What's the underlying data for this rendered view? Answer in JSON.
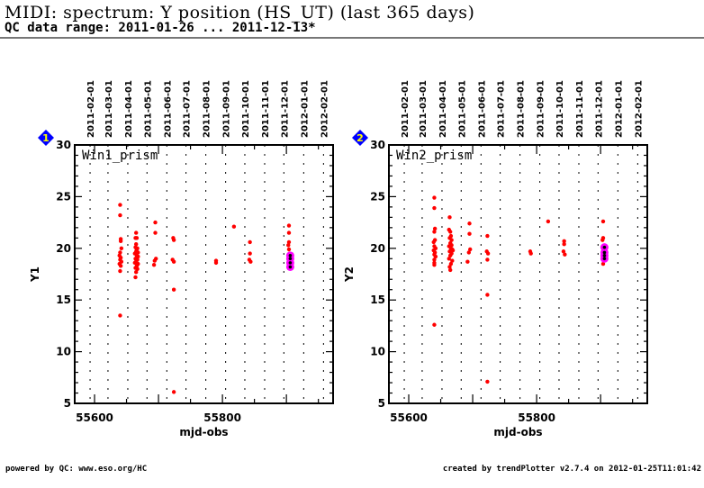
{
  "header": {
    "title": "MIDI: spectrum: Y position (HS_UT) (last 365 days)",
    "subtitle": "QC data range: 2011-01-26 ... 2011-12-13*"
  },
  "footer": {
    "left": "powered by QC: www.eso.org/HC",
    "right": "created by trendPlotter v2.7.4 on 2012-01-25T11:01:42"
  },
  "colors": {
    "points": "#ff0000",
    "highlight": "#ff00ff",
    "highlight_core": "#000000",
    "badge": "#0000ff",
    "badge_text": "#ffff00"
  },
  "chart_data": [
    {
      "type": "scatter",
      "badge": "1",
      "panel_label": "Win1_prism",
      "xlabel": "mjd-obs",
      "ylabel": "Y1",
      "xlim": [
        55569,
        55973
      ],
      "ylim": [
        5,
        30
      ],
      "xticks": [
        "55600",
        "55800"
      ],
      "yticks": [
        "5",
        "10",
        "15",
        "20",
        "25",
        "30"
      ],
      "top_date_ticks": [
        {
          "label": "2011-02-01",
          "mjd": 55593
        },
        {
          "label": "2011-03-01",
          "mjd": 55621
        },
        {
          "label": "2011-04-01",
          "mjd": 55652
        },
        {
          "label": "2011-05-01",
          "mjd": 55682
        },
        {
          "label": "2011-06-01",
          "mjd": 55713
        },
        {
          "label": "2011-07-01",
          "mjd": 55743
        },
        {
          "label": "2011-08-01",
          "mjd": 55774
        },
        {
          "label": "2011-09-01",
          "mjd": 55805
        },
        {
          "label": "2011-10-01",
          "mjd": 55835
        },
        {
          "label": "2011-11-01",
          "mjd": 55866
        },
        {
          "label": "2011-12-01",
          "mjd": 55896
        },
        {
          "label": "2012-01-01",
          "mjd": 55927
        },
        {
          "label": "2012-02-01",
          "mjd": 55958
        }
      ],
      "points": [
        [
          55640,
          24.2
        ],
        [
          55640,
          23.2
        ],
        [
          55641,
          20.9
        ],
        [
          55641,
          20.7
        ],
        [
          55642,
          20.0
        ],
        [
          55640,
          19.6
        ],
        [
          55639,
          19.3
        ],
        [
          55641,
          19.1
        ],
        [
          55640,
          18.9
        ],
        [
          55642,
          18.7
        ],
        [
          55639,
          18.5
        ],
        [
          55641,
          18.3
        ],
        [
          55640,
          17.8
        ],
        [
          55640,
          13.5
        ],
        [
          55665,
          21.5
        ],
        [
          55664,
          21.0
        ],
        [
          55666,
          21.0
        ],
        [
          55665,
          20.4
        ],
        [
          55664,
          20.1
        ],
        [
          55667,
          20.0
        ],
        [
          55665,
          19.7
        ],
        [
          55663,
          19.5
        ],
        [
          55666,
          19.3
        ],
        [
          55668,
          19.2
        ],
        [
          55664,
          19.0
        ],
        [
          55667,
          18.9
        ],
        [
          55665,
          18.7
        ],
        [
          55663,
          18.6
        ],
        [
          55668,
          18.5
        ],
        [
          55666,
          18.3
        ],
        [
          55664,
          18.1
        ],
        [
          55667,
          18.0
        ],
        [
          55665,
          17.7
        ],
        [
          55664,
          17.2
        ],
        [
          55666,
          19.9
        ],
        [
          55668,
          19.6
        ],
        [
          55695,
          22.5
        ],
        [
          55695,
          21.5
        ],
        [
          55696,
          19.0
        ],
        [
          55694,
          18.8
        ],
        [
          55693,
          18.4
        ],
        [
          55723,
          21.0
        ],
        [
          55724,
          20.8
        ],
        [
          55722,
          18.9
        ],
        [
          55724,
          18.7
        ],
        [
          55724,
          16.0
        ],
        [
          55724,
          6.1
        ],
        [
          55790,
          18.8
        ],
        [
          55790,
          18.6
        ],
        [
          55818,
          22.1
        ],
        [
          55843,
          20.6
        ],
        [
          55843,
          19.5
        ],
        [
          55842,
          18.9
        ],
        [
          55844,
          18.7
        ],
        [
          55904,
          22.2
        ],
        [
          55904,
          21.5
        ],
        [
          55904,
          20.6
        ],
        [
          55903,
          20.3
        ],
        [
          55904,
          19.9
        ],
        [
          55905,
          19.5
        ]
      ],
      "highlighted": [
        [
          55906,
          19.3
        ],
        [
          55906,
          18.6
        ],
        [
          55906,
          18.2
        ],
        [
          55906,
          19.0
        ]
      ]
    },
    {
      "type": "scatter",
      "badge": "2",
      "panel_label": "Win2_prism",
      "xlabel": "mjd-obs",
      "ylabel": "Y2",
      "xlim": [
        55569,
        55973
      ],
      "ylim": [
        5,
        30
      ],
      "xticks": [
        "55600",
        "55800"
      ],
      "yticks": [
        "5",
        "10",
        "15",
        "20",
        "25",
        "30"
      ],
      "top_date_ticks": [
        {
          "label": "2011-02-01",
          "mjd": 55593
        },
        {
          "label": "2011-03-01",
          "mjd": 55621
        },
        {
          "label": "2011-04-01",
          "mjd": 55652
        },
        {
          "label": "2011-05-01",
          "mjd": 55682
        },
        {
          "label": "2011-06-01",
          "mjd": 55713
        },
        {
          "label": "2011-07-01",
          "mjd": 55743
        },
        {
          "label": "2011-08-01",
          "mjd": 55774
        },
        {
          "label": "2011-09-01",
          "mjd": 55805
        },
        {
          "label": "2011-10-01",
          "mjd": 55835
        },
        {
          "label": "2011-11-01",
          "mjd": 55866
        },
        {
          "label": "2011-12-01",
          "mjd": 55896
        },
        {
          "label": "2012-01-01",
          "mjd": 55927
        },
        {
          "label": "2012-02-01",
          "mjd": 55958
        }
      ],
      "points": [
        [
          55640,
          24.9
        ],
        [
          55640,
          23.9
        ],
        [
          55641,
          21.9
        ],
        [
          55640,
          21.6
        ],
        [
          55641,
          20.8
        ],
        [
          55639,
          20.6
        ],
        [
          55640,
          20.2
        ],
        [
          55642,
          20.0
        ],
        [
          55639,
          19.8
        ],
        [
          55641,
          19.6
        ],
        [
          55640,
          19.4
        ],
        [
          55642,
          19.2
        ],
        [
          55640,
          18.9
        ],
        [
          55640,
          18.6
        ],
        [
          55640,
          18.4
        ],
        [
          55640,
          12.6
        ],
        [
          55664,
          23.0
        ],
        [
          55663,
          21.8
        ],
        [
          55665,
          21.6
        ],
        [
          55666,
          21.2
        ],
        [
          55664,
          21.0
        ],
        [
          55667,
          20.8
        ],
        [
          55665,
          20.5
        ],
        [
          55663,
          20.2
        ],
        [
          55666,
          20.0
        ],
        [
          55668,
          19.9
        ],
        [
          55664,
          19.7
        ],
        [
          55667,
          19.5
        ],
        [
          55665,
          19.3
        ],
        [
          55663,
          19.0
        ],
        [
          55668,
          18.8
        ],
        [
          55666,
          18.5
        ],
        [
          55664,
          18.2
        ],
        [
          55665,
          17.9
        ],
        [
          55667,
          20.3
        ],
        [
          55669,
          19.8
        ],
        [
          55695,
          22.4
        ],
        [
          55695,
          21.4
        ],
        [
          55696,
          19.9
        ],
        [
          55694,
          19.6
        ],
        [
          55692,
          18.7
        ],
        [
          55723,
          21.2
        ],
        [
          55722,
          19.7
        ],
        [
          55724,
          19.5
        ],
        [
          55723,
          18.9
        ],
        [
          55723,
          15.5
        ],
        [
          55723,
          7.1
        ],
        [
          55790,
          19.7
        ],
        [
          55791,
          19.5
        ],
        [
          55818,
          22.6
        ],
        [
          55843,
          20.7
        ],
        [
          55843,
          20.4
        ],
        [
          55842,
          19.7
        ],
        [
          55844,
          19.4
        ],
        [
          55904,
          22.6
        ],
        [
          55904,
          21.0
        ],
        [
          55903,
          20.8
        ],
        [
          55904,
          18.5
        ]
      ],
      "highlighted": [
        [
          55906,
          20.1
        ],
        [
          55906,
          19.6
        ],
        [
          55906,
          19.3
        ],
        [
          55906,
          19.0
        ]
      ]
    }
  ]
}
